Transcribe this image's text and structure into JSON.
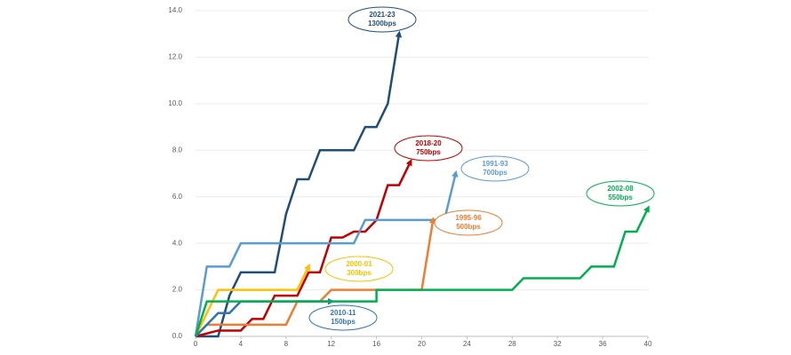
{
  "chart_data": {
    "type": "line",
    "xlim": [
      0,
      40
    ],
    "xticks": [
      0,
      4,
      8,
      12,
      16,
      20,
      24,
      28,
      32,
      36,
      40
    ],
    "ylim": [
      0,
      14
    ],
    "yticks": [
      {
        "value": 0,
        "label": "0.0"
      },
      {
        "value": 2,
        "label": "2.0"
      },
      {
        "value": 4,
        "label": "4.0"
      },
      {
        "value": 6,
        "label": "6.0"
      },
      {
        "value": 8,
        "label": "8.0"
      },
      {
        "value": 10,
        "label": "10.0"
      },
      {
        "value": 12,
        "label": "12.0"
      },
      {
        "value": 14,
        "label": "14.0"
      }
    ],
    "grid": true,
    "series": [
      {
        "name": "2021-23",
        "annotation": "1300bps",
        "color": "#1f4e79",
        "x": [
          0,
          2,
          3,
          4,
          7,
          8,
          9,
          10,
          11,
          14,
          15,
          16,
          17,
          18
        ],
        "values": [
          0,
          0,
          1.75,
          2.75,
          2.75,
          5.25,
          6.75,
          6.75,
          8,
          8,
          9,
          9,
          10,
          13
        ]
      },
      {
        "name": "2018-20",
        "annotation": "750bps",
        "color": "#c00000",
        "x": [
          0,
          2,
          4,
          5,
          6,
          7,
          9,
          10,
          11,
          12,
          13,
          14,
          15,
          16,
          17,
          18,
          19
        ],
        "values": [
          0,
          0.25,
          0.25,
          0.75,
          0.75,
          1.75,
          1.75,
          2.75,
          2.75,
          4.25,
          4.25,
          4.5,
          4.5,
          5,
          6.5,
          6.5,
          7.5
        ]
      },
      {
        "name": "1991-93",
        "annotation": "700bps",
        "color": "#5b9bd5",
        "x": [
          0,
          1,
          3,
          4,
          14,
          15,
          22,
          23
        ],
        "values": [
          0,
          3,
          3,
          4,
          4,
          5,
          5,
          7
        ]
      },
      {
        "name": "1995-96",
        "annotation": "500bps",
        "color": "#ed7d31",
        "x": [
          0,
          1,
          8,
          9,
          11,
          12,
          20,
          21
        ],
        "values": [
          0,
          0.5,
          0.5,
          1.5,
          1.5,
          2,
          2,
          5
        ]
      },
      {
        "name": "2000-01",
        "annotation": "300bps",
        "color": "#ffc000",
        "x": [
          0,
          1,
          2,
          9,
          10
        ],
        "values": [
          0,
          1,
          2,
          2,
          3
        ]
      },
      {
        "name": "2010-11",
        "annotation": "150bps",
        "color": "#2e75b6",
        "x": [
          0,
          2,
          3,
          4,
          12
        ],
        "values": [
          0,
          1,
          1,
          1.5,
          1.5
        ]
      },
      {
        "name": "2002-08",
        "annotation": "550bps",
        "color": "#00b050",
        "x": [
          0,
          1,
          16,
          16,
          28,
          29,
          34,
          35,
          37,
          38,
          39,
          40
        ],
        "values": [
          0,
          1.5,
          1.5,
          2,
          2,
          2.5,
          2.5,
          3,
          3,
          4.5,
          4.5,
          5.5
        ]
      }
    ]
  }
}
